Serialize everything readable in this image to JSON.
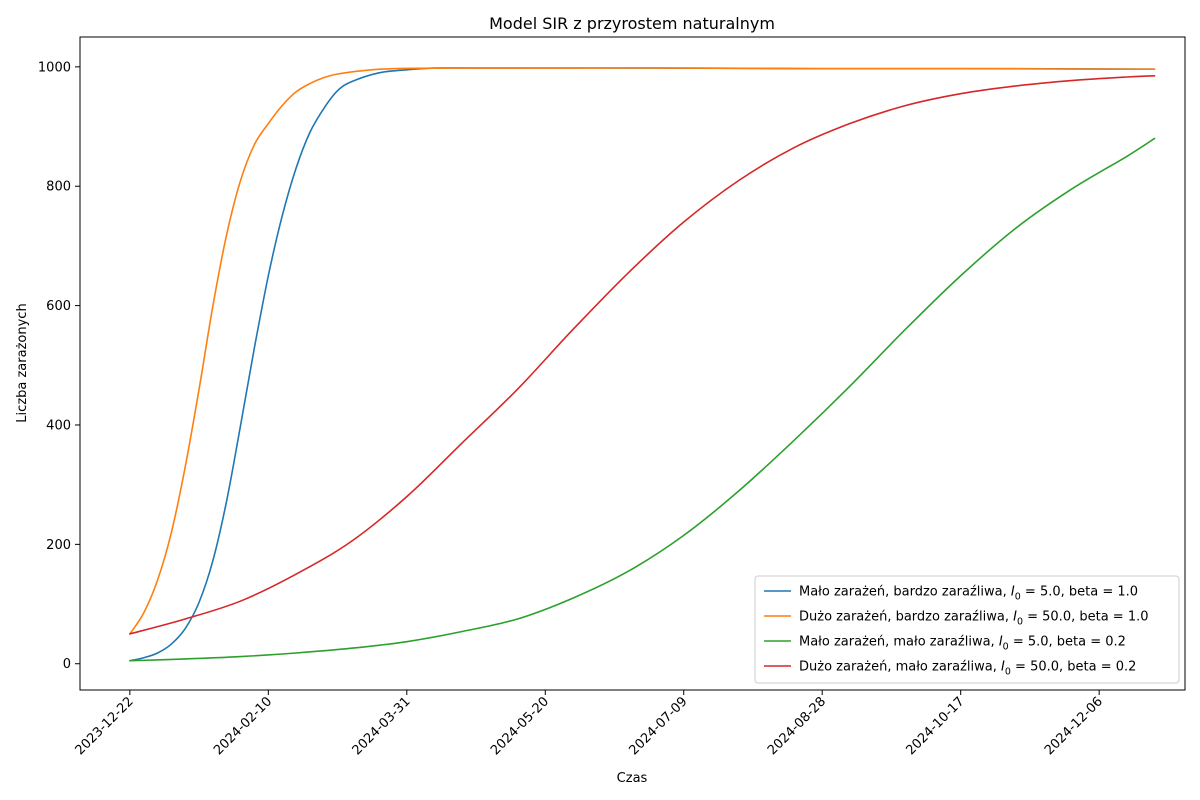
{
  "chart_data": {
    "type": "line",
    "title": "Model SIR z przyrostem naturalnym",
    "xlabel": "Czas",
    "ylabel": "Liczba zarażonych",
    "x_axis": "date",
    "xlim": [
      "2023-12-04",
      "2025-01-06"
    ],
    "ylim": [
      -44,
      1050
    ],
    "grid": false,
    "legend_position": "lower right",
    "xticks": [
      "2023-12-22",
      "2024-02-10",
      "2024-03-31",
      "2024-05-20",
      "2024-07-09",
      "2024-08-28",
      "2024-10-17",
      "2024-12-06"
    ],
    "yticks": [
      0,
      200,
      400,
      600,
      800,
      1000
    ],
    "series": [
      {
        "name": "Mało zarażeń, bardzo zaraźliwa, I0 = 5.0, beta = 1.0",
        "legend_prefix": "Mało zarażeń, bardzo zaraźliwa, ",
        "legend_suffix": " = 5.0, beta = 1.0",
        "color": "#1f77b4",
        "x": [
          "2023-12-22",
          "2023-12-27",
          "2024-01-01",
          "2024-01-06",
          "2024-01-11",
          "2024-01-16",
          "2024-01-21",
          "2024-01-26",
          "2024-01-31",
          "2024-02-05",
          "2024-02-10",
          "2024-02-15",
          "2024-02-20",
          "2024-02-25",
          "2024-03-01",
          "2024-03-06",
          "2024-03-11",
          "2024-03-21",
          "2024-03-31",
          "2024-04-10",
          "2024-04-30",
          "2024-06-29",
          "2024-08-28",
          "2024-10-27",
          "2024-12-26"
        ],
        "y": [
          5,
          10,
          18,
          33,
          59,
          103,
          173,
          274,
          400,
          530,
          650,
          750,
          830,
          890,
          930,
          960,
          975,
          990,
          995,
          998,
          998,
          998,
          997,
          997,
          996
        ]
      },
      {
        "name": "Dużo zarażeń, bardzo zaraźliwa, I0 = 50.0, beta = 1.0",
        "legend_prefix": "Dużo zarażeń, bardzo zaraźliwa, ",
        "legend_suffix": " = 50.0, beta = 1.0",
        "color": "#ff7f0e",
        "x": [
          "2023-12-22",
          "2023-12-27",
          "2024-01-01",
          "2024-01-06",
          "2024-01-11",
          "2024-01-16",
          "2024-01-21",
          "2024-01-26",
          "2024-01-31",
          "2024-02-05",
          "2024-02-10",
          "2024-02-15",
          "2024-02-20",
          "2024-02-25",
          "2024-03-01",
          "2024-03-06",
          "2024-03-16",
          "2024-03-26",
          "2024-04-15",
          "2024-05-20",
          "2024-07-09",
          "2024-08-28",
          "2024-10-17",
          "2024-12-26"
        ],
        "y": [
          50,
          85,
          140,
          220,
          330,
          460,
          600,
          720,
          810,
          870,
          905,
          935,
          958,
          972,
          982,
          988,
          994,
          997,
          998,
          998,
          998,
          997,
          997,
          996
        ]
      },
      {
        "name": "Mało zarażeń, mało zaraźliwa, I0 = 5.0, beta = 0.2",
        "legend_prefix": "Mało zarażeń, mało zaraźliwa, ",
        "legend_suffix": " = 5.0, beta = 0.2",
        "color": "#2ca02c",
        "x": [
          "2023-12-22",
          "2024-01-11",
          "2024-01-31",
          "2024-02-20",
          "2024-03-11",
          "2024-03-31",
          "2024-04-20",
          "2024-05-10",
          "2024-05-30",
          "2024-06-19",
          "2024-07-09",
          "2024-07-29",
          "2024-08-18",
          "2024-09-07",
          "2024-09-27",
          "2024-10-17",
          "2024-11-06",
          "2024-11-26",
          "2024-12-16",
          "2024-12-26"
        ],
        "y": [
          5,
          8,
          12,
          18,
          26,
          37,
          54,
          75,
          110,
          155,
          215,
          290,
          375,
          465,
          560,
          650,
          730,
          795,
          850,
          880
        ]
      },
      {
        "name": "Dużo zarażeń, mało zaraźliwa, I0 = 50.0, beta = 0.2",
        "legend_prefix": "Dużo zarażeń, mało zaraźliwa, ",
        "legend_suffix": " = 50.0, beta = 0.2",
        "color": "#d62728",
        "x": [
          "2023-12-22",
          "2024-01-11",
          "2024-01-31",
          "2024-02-20",
          "2024-03-11",
          "2024-03-31",
          "2024-04-20",
          "2024-05-10",
          "2024-05-30",
          "2024-06-19",
          "2024-07-09",
          "2024-07-29",
          "2024-08-18",
          "2024-09-07",
          "2024-09-27",
          "2024-10-17",
          "2024-11-06",
          "2024-11-26",
          "2024-12-16",
          "2024-12-26"
        ],
        "y": [
          50,
          75,
          105,
          150,
          205,
          280,
          370,
          460,
          560,
          655,
          740,
          810,
          865,
          905,
          935,
          955,
          968,
          977,
          983,
          985
        ]
      }
    ]
  }
}
